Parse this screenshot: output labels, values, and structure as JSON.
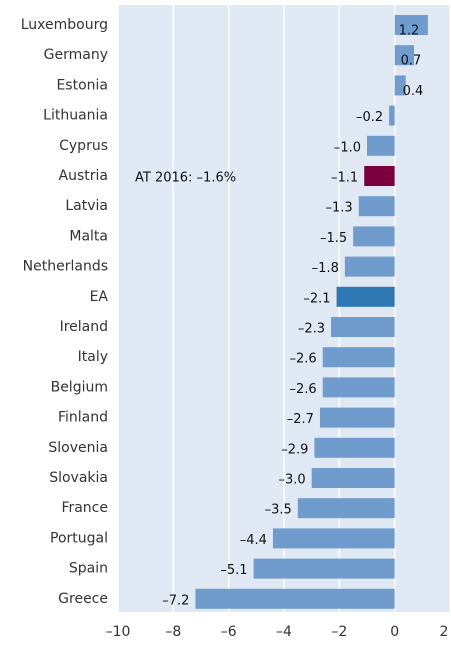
{
  "chart_data": {
    "type": "barh",
    "categories": [
      "Luxembourg",
      "Germany",
      "Estonia",
      "Lithuania",
      "Cyprus",
      "Austria",
      "Latvia",
      "Malta",
      "Netherlands",
      "EA",
      "Ireland",
      "Italy",
      "Belgium",
      "Finland",
      "Slovenia",
      "Slovakia",
      "France",
      "Portugal",
      "Spain",
      "Greece"
    ],
    "values": [
      1.2,
      0.7,
      0.4,
      -0.2,
      -1.0,
      -1.1,
      -1.3,
      -1.5,
      -1.8,
      -2.1,
      -2.3,
      -2.6,
      -2.6,
      -2.7,
      -2.9,
      -3.0,
      -3.5,
      -4.4,
      -5.1,
      -7.2
    ],
    "value_labels": [
      "1.2",
      "0.7",
      "0.4",
      "–0.2",
      "–1.0",
      "–1.1",
      "–1.3",
      "–1.5",
      "–1.8",
      "–2.1",
      "–2.3",
      "–2.6",
      "–2.6",
      "–2.7",
      "–2.9",
      "–3.0",
      "–3.5",
      "–4.4",
      "–5.1",
      "–7.2"
    ],
    "colors": [
      "#6f9ccc",
      "#6f9ccc",
      "#6f9ccc",
      "#6f9ccc",
      "#6f9ccc",
      "#7a0040",
      "#6f9ccc",
      "#6f9ccc",
      "#6f9ccc",
      "#2e78b4",
      "#6f9ccc",
      "#6f9ccc",
      "#6f9ccc",
      "#6f9ccc",
      "#6f9ccc",
      "#6f9ccc",
      "#6f9ccc",
      "#6f9ccc",
      "#6f9ccc",
      "#6f9ccc"
    ],
    "xlim": [
      -10,
      2
    ],
    "xticks": [
      {
        "value": -10,
        "label": "–10"
      },
      {
        "value": -8,
        "label": "–8"
      },
      {
        "value": -6,
        "label": "–6"
      },
      {
        "value": -4,
        "label": "–4"
      },
      {
        "value": -2,
        "label": "–2"
      },
      0,
      2
    ],
    "grid": true,
    "annotation": "AT 2016: –1.6%"
  }
}
